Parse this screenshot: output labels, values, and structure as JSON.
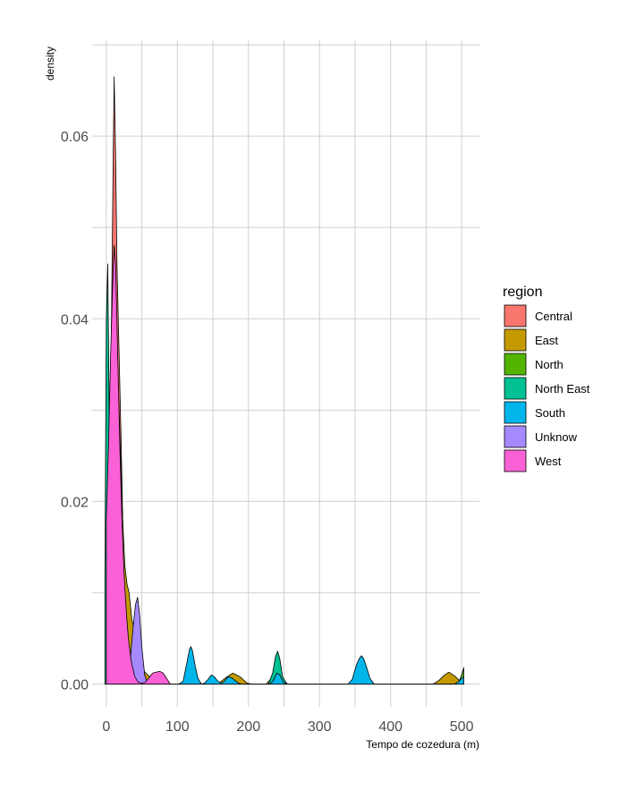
{
  "chart_data": {
    "type": "area",
    "subtype": "overlapping density curves",
    "xlabel": "Tempo de cozedura (m)",
    "ylabel": "density",
    "xlim": [
      -20,
      525
    ],
    "ylim": [
      -0.0025,
      0.0705
    ],
    "x_ticks": [
      0,
      100,
      200,
      300,
      400,
      500
    ],
    "x_tick_labels": [
      "0",
      "100",
      "200",
      "300",
      "400",
      "500"
    ],
    "y_ticks": [
      0.0,
      0.02,
      0.04,
      0.06
    ],
    "y_tick_labels": [
      "0.00",
      "0.02",
      "0.04",
      "0.06"
    ],
    "grid": true,
    "legend": {
      "title": "region",
      "position": "right"
    },
    "series": [
      {
        "name": "Central",
        "color": "#F8766D",
        "points": [
          [
            1,
            0.003
          ],
          [
            4,
            0.016
          ],
          [
            7,
            0.038
          ],
          [
            10,
            0.06
          ],
          [
            11,
            0.0665
          ],
          [
            13,
            0.058
          ],
          [
            15,
            0.046
          ],
          [
            18,
            0.036
          ],
          [
            21,
            0.026
          ],
          [
            24,
            0.014
          ],
          [
            27,
            0.006
          ],
          [
            30,
            0.002
          ],
          [
            34,
            0
          ]
        ]
      },
      {
        "name": "East",
        "color": "#C49A00",
        "points": [
          [
            3,
            0.004
          ],
          [
            7,
            0.024
          ],
          [
            10,
            0.04
          ],
          [
            12,
            0.044
          ],
          [
            14,
            0.04
          ],
          [
            17,
            0.032
          ],
          [
            20,
            0.025
          ],
          [
            23,
            0.018
          ],
          [
            26,
            0.013
          ],
          [
            29,
            0.011
          ],
          [
            32,
            0.01
          ],
          [
            36,
            0.007
          ],
          [
            41,
            0.0055
          ],
          [
            46,
            0.003
          ],
          [
            52,
            0.0015
          ],
          [
            58,
            0.001
          ],
          [
            64,
            0.0007
          ],
          [
            70,
            0.0004
          ],
          [
            76,
            0.0001
          ],
          [
            82,
            0
          ],
          [
            150,
            0
          ],
          [
            160,
            0.0002
          ],
          [
            170,
            0.0008
          ],
          [
            178,
            0.0012
          ],
          [
            188,
            0.0008
          ],
          [
            198,
            0.0001
          ],
          [
            205,
            0
          ],
          [
            225,
            0
          ],
          [
            232,
            0.0006
          ],
          [
            240,
            0.0018
          ],
          [
            248,
            0.0006
          ],
          [
            255,
            0
          ],
          [
            460,
            0
          ],
          [
            468,
            0.0004
          ],
          [
            476,
            0.001
          ],
          [
            482,
            0.0013
          ],
          [
            490,
            0.0009
          ],
          [
            498,
            0.0003
          ],
          [
            503,
            0
          ]
        ]
      },
      {
        "name": "North",
        "color": "#53B400",
        "points": [
          [
            100,
            0
          ],
          [
            110,
            0
          ],
          [
            118,
            0.0008
          ],
          [
            124,
            0.0002
          ],
          [
            130,
            0
          ],
          [
            490,
            0
          ],
          [
            496,
            0.0002
          ],
          [
            500,
            0.001
          ],
          [
            503,
            0.0018
          ]
        ]
      },
      {
        "name": "North East",
        "color": "#00C094",
        "points": [
          [
            -2,
            0.012
          ],
          [
            0,
            0.04
          ],
          [
            2,
            0.046
          ],
          [
            4,
            0.03
          ],
          [
            6,
            0.022
          ],
          [
            9,
            0.019
          ],
          [
            12,
            0.016
          ],
          [
            16,
            0.01
          ],
          [
            20,
            0.005
          ],
          [
            25,
            0.002
          ],
          [
            30,
            0
          ],
          [
            228,
            0
          ],
          [
            234,
            0.0012
          ],
          [
            238,
            0.003
          ],
          [
            241,
            0.0036
          ],
          [
            244,
            0.0028
          ],
          [
            248,
            0.0008
          ],
          [
            254,
            0
          ]
        ]
      },
      {
        "name": "South",
        "color": "#00B6EB",
        "points": [
          [
            102,
            0
          ],
          [
            108,
            0.0003
          ],
          [
            113,
            0.0022
          ],
          [
            117,
            0.0038
          ],
          [
            119,
            0.0041
          ],
          [
            121,
            0.0037
          ],
          [
            125,
            0.002
          ],
          [
            129,
            0.0006
          ],
          [
            134,
            0
          ],
          [
            138,
            0.0001
          ],
          [
            143,
            0.0005
          ],
          [
            148,
            0.001
          ],
          [
            152,
            0.0008
          ],
          [
            157,
            0.0003
          ],
          [
            162,
            0.0001
          ],
          [
            166,
            0.0003
          ],
          [
            171,
            0.0008
          ],
          [
            176,
            0.0007
          ],
          [
            181,
            0.0004
          ],
          [
            186,
            0.0001
          ],
          [
            190,
            0
          ],
          [
            230,
            0
          ],
          [
            235,
            0.0004
          ],
          [
            240,
            0.0012
          ],
          [
            244,
            0.001
          ],
          [
            249,
            0.0002
          ],
          [
            254,
            0
          ],
          [
            340,
            0
          ],
          [
            346,
            0.0005
          ],
          [
            352,
            0.0021
          ],
          [
            356,
            0.0028
          ],
          [
            359,
            0.0031
          ],
          [
            362,
            0.0028
          ],
          [
            366,
            0.0019
          ],
          [
            371,
            0.0006
          ],
          [
            377,
            0
          ],
          [
            490,
            0
          ],
          [
            496,
            0.0003
          ],
          [
            501,
            0.0007
          ],
          [
            503,
            0.0008
          ]
        ]
      },
      {
        "name": "Unknow",
        "color": "#A58AFF",
        "points": [
          [
            5,
            0.01
          ],
          [
            8,
            0.028
          ],
          [
            10,
            0.046
          ],
          [
            11,
            0.048
          ],
          [
            13,
            0.04
          ],
          [
            16,
            0.026
          ],
          [
            20,
            0.012
          ],
          [
            24,
            0.004
          ],
          [
            27,
            0.0015
          ],
          [
            30,
            0.001
          ],
          [
            34,
            0.003
          ],
          [
            38,
            0.0065
          ],
          [
            41,
            0.0087
          ],
          [
            44,
            0.0095
          ],
          [
            47,
            0.0075
          ],
          [
            50,
            0.004
          ],
          [
            54,
            0.001
          ],
          [
            58,
            0
          ]
        ]
      },
      {
        "name": "West",
        "color": "#FB61D7",
        "points": [
          [
            0,
            0.018
          ],
          [
            3,
            0.026
          ],
          [
            6,
            0.036
          ],
          [
            9,
            0.044
          ],
          [
            11,
            0.048
          ],
          [
            13,
            0.046
          ],
          [
            16,
            0.036
          ],
          [
            19,
            0.026
          ],
          [
            22,
            0.018
          ],
          [
            25,
            0.012
          ],
          [
            28,
            0.008
          ],
          [
            31,
            0.005
          ],
          [
            35,
            0.0025
          ],
          [
            40,
            0.0008
          ],
          [
            45,
            0.0002
          ],
          [
            50,
            0.0001
          ],
          [
            55,
            0.0002
          ],
          [
            60,
            0.0007
          ],
          [
            65,
            0.0012
          ],
          [
            70,
            0.0013
          ],
          [
            75,
            0.0014
          ],
          [
            80,
            0.0012
          ],
          [
            85,
            0.0006
          ],
          [
            90,
            0
          ]
        ]
      }
    ]
  }
}
